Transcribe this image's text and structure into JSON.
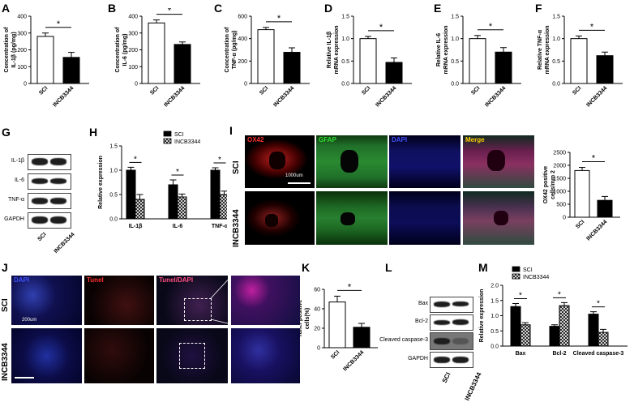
{
  "panels": {
    "A": "A",
    "B": "B",
    "C": "C",
    "D": "D",
    "E": "E",
    "F": "F",
    "G": "G",
    "H": "H",
    "I": "I",
    "J": "J",
    "K": "K",
    "L": "L",
    "M": "M"
  },
  "star": "*",
  "colors": {
    "sci": "#ffffff",
    "incb": "#000000",
    "hatch": "#cccccc",
    "red": "#e02020",
    "green": "#30c030",
    "blue": "#2030d0",
    "merge": "#e8c000"
  },
  "chart_data": [
    {
      "panel": "A",
      "type": "bar",
      "categories": [
        "SCI",
        "INCB3344"
      ],
      "values": [
        280,
        155
      ],
      "errors": [
        20,
        30
      ],
      "ylim": [
        0,
        400
      ],
      "yticks": [
        0,
        100,
        200,
        300,
        400
      ],
      "ylabel": "Concentration of IL-1β (pg/mg)",
      "sig": "*"
    },
    {
      "panel": "B",
      "type": "bar",
      "categories": [
        "SCI",
        "INCB3344"
      ],
      "values": [
        360,
        232
      ],
      "errors": [
        18,
        15
      ],
      "ylim": [
        0,
        400
      ],
      "yticks": [
        0,
        100,
        200,
        300,
        400
      ],
      "ylabel": "Concentration of IL-6 (pg/mg)",
      "sig": "*"
    },
    {
      "panel": "C",
      "type": "bar",
      "categories": [
        "SCI",
        "INCB3344"
      ],
      "values": [
        480,
        278
      ],
      "errors": [
        20,
        40
      ],
      "ylim": [
        0,
        600
      ],
      "yticks": [
        0,
        200,
        400,
        600
      ],
      "ylabel": "Concentration of TNF-α (pg/mg)",
      "sig": "*"
    },
    {
      "panel": "D",
      "type": "bar",
      "categories": [
        "SCI",
        "INCB3344"
      ],
      "values": [
        1.0,
        0.47
      ],
      "errors": [
        0.05,
        0.1
      ],
      "ylim": [
        0,
        1.5
      ],
      "yticks": [
        "0.0",
        "0.5",
        "1.0",
        "1.5"
      ],
      "ylabel": "Relative IL-1β mRNA expression",
      "sig": "*"
    },
    {
      "panel": "E",
      "type": "bar",
      "categories": [
        "SCI",
        "INCB3344"
      ],
      "values": [
        1.0,
        0.7
      ],
      "errors": [
        0.07,
        0.1
      ],
      "ylim": [
        0,
        1.5
      ],
      "yticks": [
        "0.0",
        "0.5",
        "1.0",
        "1.5"
      ],
      "ylabel": "Relative IL-6 mRNA expression",
      "sig": "*"
    },
    {
      "panel": "F",
      "type": "bar",
      "categories": [
        "SCI",
        "INCB3344"
      ],
      "values": [
        1.0,
        0.62
      ],
      "errors": [
        0.06,
        0.08
      ],
      "ylim": [
        0,
        1.5
      ],
      "yticks": [
        "0.0",
        "0.5",
        "1.0",
        "1.5"
      ],
      "ylabel": "Relative TNF-α mRNA expression",
      "sig": "*"
    },
    {
      "panel": "H",
      "type": "bar",
      "categories": [
        "IL-1β",
        "IL-6",
        "TNF-α"
      ],
      "series": [
        {
          "name": "SCI",
          "values": [
            1.0,
            0.7,
            1.0
          ],
          "errors": [
            0.06,
            0.1,
            0.05
          ]
        },
        {
          "name": "INCB3344",
          "values": [
            0.4,
            0.45,
            0.5
          ],
          "errors": [
            0.1,
            0.06,
            0.07
          ]
        }
      ],
      "ylim": [
        0,
        1.5
      ],
      "yticks": [
        "0.0",
        "0.5",
        "1.0",
        "1.5"
      ],
      "ylabel": "Relative expression",
      "legend": "top-right",
      "sig": "*"
    },
    {
      "panel": "I",
      "type": "bar",
      "categories": [
        "SCI",
        "INCB3344"
      ],
      "values": [
        1800,
        650
      ],
      "errors": [
        120,
        150
      ],
      "ylim": [
        0,
        2500
      ],
      "yticks": [
        0,
        500,
        1000,
        1500,
        2000,
        2500
      ],
      "ylabel": "OX42 positive cells/mm 2",
      "sig": "*"
    },
    {
      "panel": "K",
      "type": "bar",
      "categories": [
        "SCI",
        "INCB3344"
      ],
      "values": [
        47,
        21
      ],
      "errors": [
        6,
        4
      ],
      "ylim": [
        0,
        60
      ],
      "yticks": [
        0,
        20,
        40,
        60
      ],
      "ylabel": "Tunel positive cells(%)",
      "sig": "*"
    },
    {
      "panel": "M",
      "type": "bar",
      "categories": [
        "Bax",
        "Bcl-2",
        "Cleaved caspase-3"
      ],
      "series": [
        {
          "name": "SCI",
          "values": [
            1.3,
            0.65,
            1.05
          ],
          "errors": [
            0.1,
            0.05,
            0.08
          ]
        },
        {
          "name": "INCB3344",
          "values": [
            0.7,
            1.33,
            0.45
          ],
          "errors": [
            0.07,
            0.1,
            0.1
          ]
        }
      ],
      "ylim": [
        0,
        2.0
      ],
      "yticks": [
        "0.0",
        "0.5",
        "1.0",
        "1.5",
        "2.0"
      ],
      "ylabel": "Relative expression",
      "legend": "top-left",
      "sig": "*"
    }
  ],
  "blotG": {
    "labels": [
      "IL-1β",
      "IL-6",
      "TNF-α",
      "GAPDH"
    ],
    "lanes": [
      "SCI",
      "INCB3344"
    ]
  },
  "blotL": {
    "labels": [
      "Bax",
      "Bcl-2",
      "Cleaved caspase-3",
      "GAPDH"
    ],
    "lanes": [
      "SCI",
      "INCB3344"
    ]
  },
  "micrographsI": {
    "columns": [
      "OX42",
      "GFAP",
      "DAPI",
      "Merge"
    ],
    "rows": [
      "SCI",
      "INCB3344"
    ],
    "scalebar": "1000um"
  },
  "micrographsJ": {
    "columns": [
      "DAPI",
      "Tunel",
      "Tunel/DAPI"
    ],
    "rows": [
      "SCI",
      "INCB3344"
    ],
    "scalebar": "200um"
  }
}
